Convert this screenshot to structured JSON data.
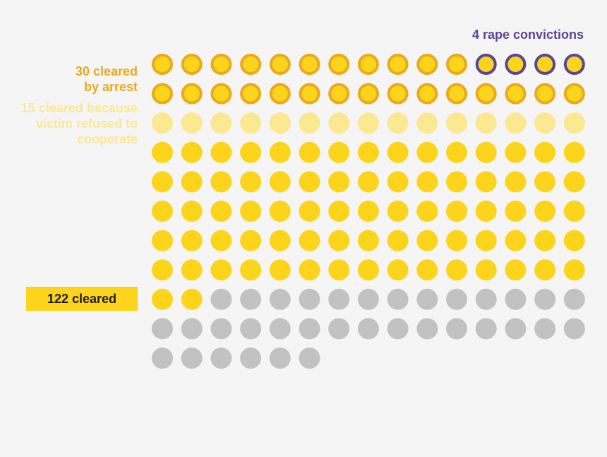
{
  "chart_data": {
    "type": "waffle",
    "total": 156,
    "columns": 15,
    "groups": [
      {
        "key": "convictions",
        "count": 4,
        "fill": "#fdd41c",
        "stroke": "#5a4794"
      },
      {
        "key": "arrest_other",
        "count": 26,
        "fill": "#fdd41c",
        "stroke": "#eba91c"
      },
      {
        "key": "refused",
        "count": 15,
        "fill": "#fbe891",
        "stroke": ""
      },
      {
        "key": "other_cleared",
        "count": 77,
        "fill": "#fdd41c",
        "stroke": ""
      },
      {
        "key": "not_cleared",
        "count": 34,
        "fill": "#c2c2c2",
        "stroke": ""
      }
    ],
    "labels": {
      "convictions": {
        "text": "4 rape convictions",
        "color": "#5a4794"
      },
      "arrest": {
        "lines": [
          "30 cleared",
          "by arrest"
        ],
        "color": "#eba91c"
      },
      "refused": {
        "lines": [
          "15 cleared because",
          "victim refused to",
          "cooperate"
        ],
        "color": "#fbe891"
      },
      "cleared": {
        "text": "122 cleared",
        "color": "#1a1a1a",
        "background": "#fdd41c"
      }
    }
  }
}
